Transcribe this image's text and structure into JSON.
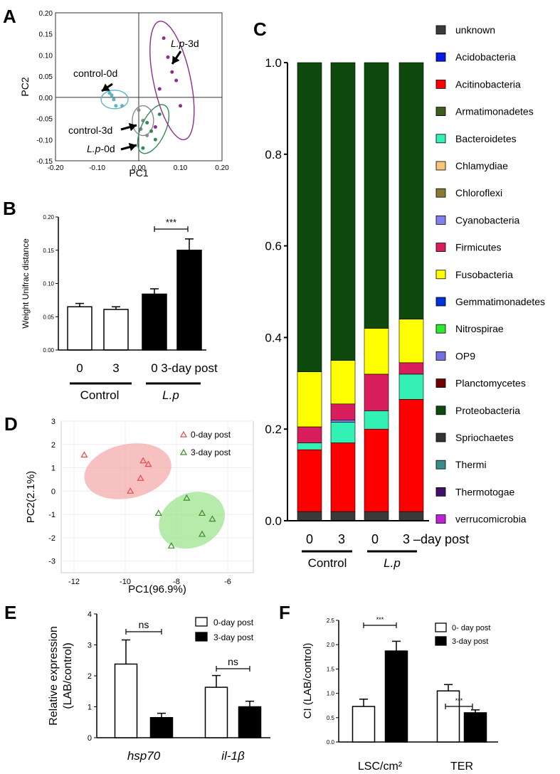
{
  "chart_data": [
    {
      "panel": "A",
      "type": "scatter",
      "xlabel": "PC1",
      "ylabel": "PC2",
      "xlim": [
        -0.2,
        0.2
      ],
      "ylim": [
        -0.15,
        0.2
      ],
      "xticks": [
        "-0.20",
        "-0.10",
        "0.00",
        "0.10",
        "0.20"
      ],
      "yticks": [
        "0.20",
        "0.15",
        "0.10",
        "0.05",
        "0.00",
        "-0.05",
        "-0.10",
        "-0.15"
      ],
      "groups": [
        {
          "name": "control-0d",
          "color": "#5ab4c8",
          "points": [
            [
              -0.07,
              0.01
            ],
            [
              -0.06,
              -0.005
            ],
            [
              -0.055,
              -0.02
            ],
            [
              -0.04,
              -0.02
            ],
            [
              -0.065,
              0.005
            ]
          ]
        },
        {
          "name": "control-3d",
          "color": "#8a8a8a",
          "points": [
            [
              0.0,
              -0.03
            ],
            [
              0.01,
              -0.055
            ],
            [
              0.02,
              -0.09
            ],
            [
              0.005,
              -0.075
            ]
          ]
        },
        {
          "name": "L.p-0d",
          "color": "#2e8b57",
          "points": [
            [
              0.02,
              -0.06
            ],
            [
              0.03,
              -0.08
            ],
            [
              0.01,
              -0.12
            ],
            [
              0.05,
              -0.04
            ],
            [
              0.04,
              -0.1
            ]
          ]
        },
        {
          "name": "L.p-3d",
          "color": "#8b2f8b",
          "points": [
            [
              0.06,
              0.14
            ],
            [
              0.07,
              0.095
            ],
            [
              0.08,
              0.06
            ],
            [
              0.05,
              0.02
            ],
            [
              0.09,
              0.04
            ],
            [
              0.04,
              -0.07
            ],
            [
              0.1,
              -0.02
            ]
          ]
        }
      ],
      "annotations": [
        {
          "prefix": "",
          "italic": "L.p",
          "suffix": "-3d"
        },
        {
          "prefix": "control-0d",
          "italic": "",
          "suffix": ""
        },
        {
          "prefix": "control-3d",
          "italic": "",
          "suffix": ""
        },
        {
          "prefix": "",
          "italic": "L.p",
          "suffix": "-0d"
        }
      ]
    },
    {
      "panel": "B",
      "type": "bar",
      "ylabel": "Weight Unifrac distance",
      "ylim": [
        0,
        0.2
      ],
      "yticks": [
        "0.20",
        "0.15",
        "0.10",
        "0.05",
        "0.00"
      ],
      "bars": [
        {
          "group": "Control",
          "label": "0",
          "value": 0.065,
          "error": 0.005,
          "fill": "#ffffff"
        },
        {
          "group": "Control",
          "label": "3",
          "value": 0.061,
          "error": 0.004,
          "fill": "#ffffff"
        },
        {
          "group": "L.p",
          "label": "0",
          "value": 0.084,
          "error": 0.008,
          "fill": "#000000"
        },
        {
          "group": "L.p",
          "label": "3-day post",
          "value": 0.15,
          "error": 0.017,
          "fill": "#000000"
        }
      ],
      "group_labels": [
        "Control",
        "L.p"
      ],
      "significance": "***"
    },
    {
      "panel": "C",
      "type": "stacked-bar",
      "ylim": [
        0,
        1.0
      ],
      "yticks": [
        "1.0",
        "0.8",
        "0.6",
        "0.4",
        "0.2",
        "0.0"
      ],
      "categories": [
        "0",
        "3",
        "0",
        "3 –day post"
      ],
      "group_labels": [
        "Control",
        "L.p"
      ],
      "series": [
        {
          "name": "unknown",
          "color": "#3a3a3a",
          "values": [
            0.02,
            0.02,
            0.02,
            0.02
          ]
        },
        {
          "name": "Acidobacteria",
          "color": "#0a18e6",
          "values": [
            0.0,
            0.0,
            0.0,
            0.0
          ]
        },
        {
          "name": "Acitinobacteria",
          "color": "#ff0000",
          "values": [
            0.135,
            0.15,
            0.18,
            0.245
          ]
        },
        {
          "name": "Armatimonadetes",
          "color": "#3b5e1a",
          "values": [
            0.0,
            0.0,
            0.0,
            0.0
          ]
        },
        {
          "name": "Bacteroidetes",
          "color": "#33f0b4",
          "values": [
            0.015,
            0.045,
            0.04,
            0.055
          ]
        },
        {
          "name": "Chlamydiae",
          "color": "#f5c57a",
          "values": [
            0.0,
            0.0,
            0.0,
            0.0
          ]
        },
        {
          "name": "Chloroflexi",
          "color": "#8c7a32",
          "values": [
            0.0,
            0.0,
            0.0,
            0.0
          ]
        },
        {
          "name": "Cyanobacteria",
          "color": "#8080f0",
          "values": [
            0.0,
            0.005,
            0.0,
            0.0
          ]
        },
        {
          "name": "Firmicutes",
          "color": "#d81e5c",
          "values": [
            0.035,
            0.035,
            0.08,
            0.025
          ]
        },
        {
          "name": "Fusobacteria",
          "color": "#ffff00",
          "values": [
            0.12,
            0.095,
            0.1,
            0.095
          ]
        },
        {
          "name": "Gemmatimonadetes",
          "color": "#0030d8",
          "values": [
            0.0,
            0.0,
            0.0,
            0.0
          ]
        },
        {
          "name": "Nitrospirae",
          "color": "#2ee82e",
          "values": [
            0.0,
            0.0,
            0.0,
            0.0
          ]
        },
        {
          "name": "OP9",
          "color": "#7070e0",
          "values": [
            0.0,
            0.0,
            0.0,
            0.0
          ]
        },
        {
          "name": "Planctomycetes",
          "color": "#700000",
          "values": [
            0.0,
            0.0,
            0.0,
            0.0
          ]
        },
        {
          "name": "Proteobacteria",
          "color": "#0e4a0e",
          "values": [
            0.675,
            0.65,
            0.58,
            0.56
          ]
        },
        {
          "name": "Spriochaetes",
          "color": "#333333",
          "values": [
            0.0,
            0.0,
            0.0,
            0.0
          ]
        },
        {
          "name": "Thermi",
          "color": "#3a8c8c",
          "values": [
            0.0,
            0.0,
            0.0,
            0.0
          ]
        },
        {
          "name": "Thermotogae",
          "color": "#40106a",
          "values": [
            0.0,
            0.0,
            0.0,
            0.0
          ]
        },
        {
          "name": "verrucomicrobia",
          "color": "#c020d8",
          "values": [
            0.0,
            0.0,
            0.0,
            0.0
          ]
        }
      ]
    },
    {
      "panel": "D",
      "type": "scatter",
      "xlabel": "PC1(96.9%)",
      "ylabel": "PC2(2.1%)",
      "xlim": [
        -12.5,
        -5.0
      ],
      "ylim": [
        -3.5,
        3.0
      ],
      "xticks": [
        "-12",
        "-10",
        "-8",
        "-6"
      ],
      "xtick_values": [
        -12,
        -10,
        -8,
        -6
      ],
      "yticks": [
        "3",
        "2",
        "1",
        "0",
        "-1",
        "-2",
        "-3"
      ],
      "legend": [
        "0-day post",
        "3-day post"
      ],
      "groups": [
        {
          "name": "0-day post",
          "color": "#e8484a",
          "ellipse": "#f4a0a0",
          "points": [
            [
              -11.6,
              1.55
            ],
            [
              -9.3,
              1.3
            ],
            [
              -9.1,
              1.15
            ],
            [
              -9.4,
              0.55
            ],
            [
              -9.8,
              0.0
            ]
          ]
        },
        {
          "name": "3-day post",
          "color": "#3a8a2a",
          "ellipse": "#90e080",
          "points": [
            [
              -7.6,
              -0.3
            ],
            [
              -8.7,
              -0.95
            ],
            [
              -7.0,
              -0.95
            ],
            [
              -6.6,
              -1.2
            ],
            [
              -7.0,
              -1.85
            ],
            [
              -8.2,
              -2.35
            ]
          ]
        }
      ]
    },
    {
      "panel": "E",
      "type": "bar",
      "ylabel": "Relative expression (LAB/control)",
      "ylim": [
        0,
        4
      ],
      "yticks": [
        "4",
        "3",
        "2",
        "1",
        "0"
      ],
      "categories": [
        "hsp70",
        "il-1β"
      ],
      "legend": [
        "0-day post",
        "3-day post"
      ],
      "series": [
        {
          "name": "0-day post",
          "fill": "#ffffff",
          "values": [
            2.38,
            1.63
          ],
          "errors": [
            0.78,
            0.38
          ]
        },
        {
          "name": "3-day post",
          "fill": "#000000",
          "values": [
            0.65,
            1.0
          ],
          "errors": [
            0.14,
            0.18
          ]
        }
      ],
      "significance": [
        "ns",
        "ns"
      ]
    },
    {
      "panel": "F",
      "type": "bar",
      "ylabel": "CI (LAB/control)",
      "ylim": [
        0,
        2.5
      ],
      "yticks": [
        "2.5",
        "2.0",
        "1.5",
        "1.0",
        "0.5",
        "0.0"
      ],
      "categories": [
        "LSC/cm²",
        "TER"
      ],
      "legend": [
        "0- day post",
        "3-day post"
      ],
      "series": [
        {
          "name": "0- day post",
          "fill": "#ffffff",
          "values": [
            0.73,
            1.05
          ],
          "errors": [
            0.15,
            0.13
          ]
        },
        {
          "name": "3-day post",
          "fill": "#000000",
          "values": [
            1.87,
            0.6
          ],
          "errors": [
            0.2,
            0.06
          ]
        }
      ],
      "significance": [
        "***",
        "***"
      ]
    }
  ]
}
